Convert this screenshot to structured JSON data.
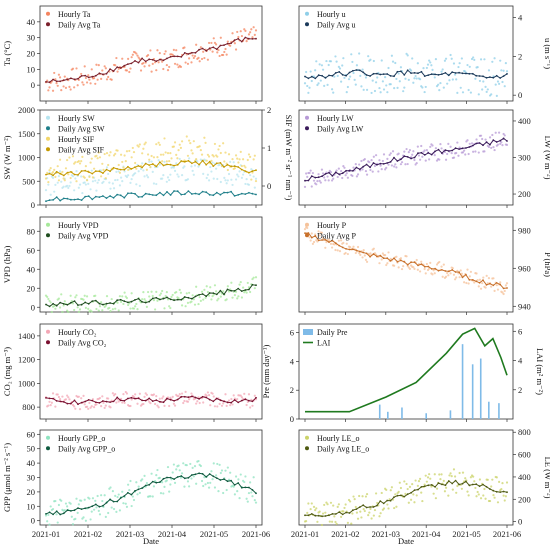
{
  "figure": {
    "xlabel": "Date",
    "xticks": [
      "2021-01",
      "2021-02",
      "2021-03",
      "2021-04",
      "2021-05",
      "2021-06"
    ]
  },
  "chart_data": [
    {
      "type": "scatter",
      "ylabel": "Ta (°C)",
      "ylim": [
        -10,
        50
      ],
      "yticks": [
        0,
        10,
        20,
        30,
        40
      ],
      "series": [
        {
          "name": "Hourly Ta",
          "color": "#f4845f",
          "kind": "hourly",
          "values": [
            2,
            3,
            5,
            8,
            12,
            16,
            15,
            18,
            22,
            24,
            28,
            30
          ],
          "spread": 7
        },
        {
          "name": "Daily Avg Ta",
          "color": "#7a1f2b",
          "kind": "daily",
          "values": [
            2,
            3,
            5,
            8,
            12,
            16,
            15,
            18,
            22,
            24,
            28,
            30
          ]
        }
      ]
    },
    {
      "type": "scatter",
      "ylabel": "u (m s⁻¹)",
      "ylabel_side": "right",
      "ylim": [
        -0.3,
        4.6
      ],
      "yticks": [
        0,
        2,
        4
      ],
      "series": [
        {
          "name": "Hourly u",
          "color": "#8fcfe8",
          "kind": "hourly",
          "values": [
            0.9,
            1.0,
            1.1,
            1.2,
            1.0,
            1.1,
            1.2,
            1.0,
            1.1,
            1.0,
            0.9,
            1.0
          ],
          "spread": 1.0
        },
        {
          "name": "Daily Avg u",
          "color": "#1b3a5a",
          "kind": "daily",
          "values": [
            0.9,
            1.0,
            1.1,
            1.2,
            1.0,
            1.1,
            1.2,
            1.0,
            1.1,
            1.0,
            0.9,
            1.0
          ]
        }
      ]
    },
    {
      "type": "scatter",
      "ylabel": "SW (W m⁻²)",
      "ylabel2": "SIF (mW m⁻² sr⁻¹ nm⁻¹)",
      "ylim": [
        0,
        2000
      ],
      "yticks": [
        0,
        500,
        1000,
        1500,
        2000
      ],
      "y2lim": [
        -0.5,
        2
      ],
      "y2ticks": [
        0,
        1,
        2
      ],
      "series": [
        {
          "name": "Hourly SW",
          "color": "#b7e4ef",
          "kind": "hourly",
          "values": [
            450,
            480,
            500,
            540,
            600,
            650,
            700,
            720,
            750,
            700,
            650,
            600
          ],
          "spread": 250
        },
        {
          "name": "Daily Avg SW",
          "color": "#1f7f8a",
          "kind": "daily",
          "values": [
            130,
            140,
            150,
            180,
            200,
            220,
            240,
            250,
            260,
            240,
            230,
            220
          ]
        },
        {
          "name": "Hourly SIF",
          "color": "#f2d66b",
          "kind": "hourly",
          "values": [
            700,
            720,
            760,
            820,
            900,
            1000,
            1100,
            1150,
            1200,
            1100,
            900,
            750
          ],
          "spread": 300
        },
        {
          "name": "Daily Avg SIF",
          "color": "#c59a00",
          "kind": "daily",
          "values": [
            650,
            660,
            680,
            720,
            760,
            820,
            860,
            880,
            900,
            850,
            780,
            700
          ]
        }
      ]
    },
    {
      "type": "scatter",
      "ylabel": "LW (W m⁻²)",
      "ylabel_side": "right",
      "ylim": [
        170,
        430
      ],
      "yticks": [
        200,
        300,
        400
      ],
      "series": [
        {
          "name": "Hourly LW",
          "color": "#b79ad6",
          "kind": "hourly",
          "values": [
            240,
            250,
            260,
            270,
            285,
            295,
            305,
            315,
            320,
            330,
            340,
            350
          ],
          "spread": 25
        },
        {
          "name": "Daily Avg LW",
          "color": "#3a1b5a",
          "kind": "daily",
          "values": [
            240,
            250,
            260,
            270,
            285,
            295,
            305,
            315,
            320,
            330,
            340,
            350
          ]
        }
      ]
    },
    {
      "type": "scatter",
      "ylabel": "VPD (hPa)",
      "ylim": [
        -5,
        95
      ],
      "yticks": [
        0,
        20,
        40,
        60,
        80
      ],
      "series": [
        {
          "name": "Hourly VPD",
          "color": "#a6e89a",
          "kind": "hourly",
          "values": [
            3,
            4,
            4,
            5,
            6,
            7,
            8,
            10,
            12,
            15,
            18,
            22
          ],
          "spread": 10
        },
        {
          "name": "Daily Avg VPD",
          "color": "#1f4d1f",
          "kind": "daily",
          "values": [
            3,
            4,
            4,
            5,
            6,
            7,
            8,
            10,
            12,
            15,
            18,
            22
          ]
        }
      ]
    },
    {
      "type": "scatter",
      "ylabel": "P (hPa)",
      "ylabel_side": "right",
      "ylim": [
        937,
        987
      ],
      "yticks": [
        940,
        960,
        980
      ],
      "series": [
        {
          "name": "Hourly P",
          "color": "#f5c29a",
          "kind": "hourly",
          "values": [
            978,
            975,
            972,
            968,
            966,
            964,
            962,
            960,
            958,
            955,
            952,
            950
          ],
          "spread": 4
        },
        {
          "name": "Daily Avg P",
          "color": "#c8702a",
          "kind": "daily",
          "values": [
            978,
            975,
            972,
            968,
            966,
            964,
            962,
            960,
            958,
            955,
            952,
            950
          ]
        }
      ]
    },
    {
      "type": "scatter",
      "ylabel": "CO₂ (mg m⁻³)",
      "ylim": [
        700,
        1500
      ],
      "yticks": [
        800,
        1000,
        1200,
        1400
      ],
      "series": [
        {
          "name": "Hourly CO₂",
          "color": "#f3a7b5",
          "kind": "hourly",
          "values": [
            860,
            850,
            840,
            850,
            870,
            860,
            850,
            870,
            880,
            860,
            850,
            860
          ],
          "spread": 60
        },
        {
          "name": "Daily Avg CO₂",
          "color": "#7a1030",
          "kind": "daily",
          "values": [
            860,
            850,
            840,
            850,
            870,
            860,
            850,
            870,
            880,
            860,
            850,
            860
          ]
        }
      ]
    },
    {
      "type": "bar",
      "ylabel": "Pre (mm day⁻¹)",
      "ylim": [
        0,
        6.6
      ],
      "yticks": [
        0,
        2,
        4,
        6
      ],
      "ylabel2": "LAI (m² m⁻²)",
      "y2lim": [
        0,
        6.5
      ],
      "y2ticks": [
        2,
        4,
        6
      ],
      "series": [
        {
          "name": "Daily Pre",
          "color": "#7fbbe8",
          "kind": "bars",
          "t": [
            0.37,
            0.41,
            0.48,
            0.6,
            0.72,
            0.78,
            0.83,
            0.87,
            0.91,
            0.96
          ],
          "values": [
            1.0,
            0.5,
            0.8,
            0.4,
            0.6,
            5.2,
            3.8,
            4.2,
            1.2,
            1.1
          ]
        },
        {
          "name": "LAI",
          "color": "#1f7a1f",
          "kind": "lai",
          "t": [
            0.0,
            0.22,
            0.4,
            0.55,
            0.7,
            0.78,
            0.84,
            0.89,
            0.93,
            0.97,
            1.0
          ],
          "values": [
            0.5,
            0.5,
            1.5,
            2.5,
            4.5,
            5.8,
            6.2,
            5.0,
            5.5,
            4.2,
            3.0
          ]
        }
      ]
    },
    {
      "type": "scatter",
      "ylabel": "GPP (μmol m⁻² s⁻¹)",
      "ylim": [
        -3,
        63
      ],
      "yticks": [
        0,
        10,
        20,
        30,
        40,
        50,
        60
      ],
      "series": [
        {
          "name": "Hourly GPP_o",
          "color": "#8fe3c0",
          "kind": "hourly",
          "values": [
            5,
            6,
            8,
            12,
            16,
            22,
            28,
            30,
            32,
            30,
            26,
            20
          ],
          "spread": 10
        },
        {
          "name": "Daily Avg GPP_o",
          "color": "#0f5a3f",
          "kind": "daily",
          "values": [
            5,
            6,
            8,
            12,
            16,
            22,
            28,
            30,
            32,
            30,
            26,
            20
          ]
        }
      ]
    },
    {
      "type": "scatter",
      "ylabel": "LE (W m⁻²)",
      "ylabel_side": "right",
      "ylim": [
        -30,
        820
      ],
      "yticks": [
        0,
        200,
        400,
        600,
        800
      ],
      "series": [
        {
          "name": "Hourly LE_o",
          "color": "#cbd36a",
          "kind": "hourly",
          "values": [
            50,
            60,
            80,
            120,
            160,
            220,
            280,
            320,
            360,
            340,
            300,
            250
          ],
          "spread": 120
        },
        {
          "name": "Daily Avg LE_o",
          "color": "#4f5a12",
          "kind": "daily",
          "values": [
            50,
            60,
            80,
            120,
            160,
            220,
            280,
            320,
            360,
            340,
            300,
            250
          ]
        }
      ]
    }
  ]
}
